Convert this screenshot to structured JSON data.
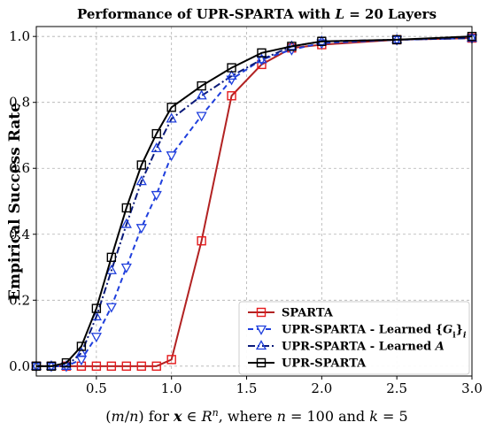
{
  "chart_data": {
    "type": "line",
    "title": "Performance of UPR-SPARTA with L = 20 Layers",
    "xlabel": "(m/n) for x ∈ R^n, where n = 100 and k = 5",
    "ylabel": "Empirical Success Rate",
    "xlim": [
      0.1,
      3.0
    ],
    "ylim": [
      -0.03,
      1.03
    ],
    "xticks": [
      0.5,
      1.0,
      1.5,
      2.0,
      2.5,
      3.0
    ],
    "xtick_labels": [
      "0.5",
      "1.0",
      "1.5",
      "2.0",
      "2.5",
      "3.0"
    ],
    "yticks": [
      0.0,
      0.2,
      0.4,
      0.6,
      0.8,
      1.0
    ],
    "ytick_labels": [
      "0.0",
      "0.2",
      "0.4",
      "0.6",
      "0.8",
      "1.0"
    ],
    "grid": true,
    "legend_position": "bottom-right",
    "series": [
      {
        "name": "SPARTA",
        "color": "#b22222",
        "marker_color": "#e41a1c",
        "dash": "solid",
        "marker": "square",
        "x": [
          0.1,
          0.2,
          0.3,
          0.4,
          0.5,
          0.6,
          0.7,
          0.8,
          0.9,
          1.0,
          1.2,
          1.4,
          1.6,
          1.8,
          2.0,
          2.5,
          3.0
        ],
        "y": [
          0.0,
          0.0,
          0.0,
          0.0,
          0.0,
          0.0,
          0.0,
          0.0,
          0.0,
          0.02,
          0.38,
          0.82,
          0.915,
          0.965,
          0.975,
          0.99,
          0.995
        ]
      },
      {
        "name": "UPR-SPARTA - Learned {G_i}_i",
        "color": "#1f3fdd",
        "marker_color": "#1f3fdd",
        "dash": "dashed",
        "marker": "triangle-down",
        "x": [
          0.1,
          0.2,
          0.3,
          0.4,
          0.5,
          0.6,
          0.7,
          0.8,
          0.9,
          1.0,
          1.2,
          1.4,
          1.6,
          1.8,
          2.0,
          2.5,
          3.0
        ],
        "y": [
          0.0,
          0.0,
          0.0,
          0.02,
          0.09,
          0.18,
          0.3,
          0.42,
          0.52,
          0.64,
          0.76,
          0.87,
          0.93,
          0.96,
          0.98,
          0.99,
          0.995
        ]
      },
      {
        "name": "UPR-SPARTA - Learned A",
        "color": "#0a1a7a",
        "marker_color": "#1f3fdd",
        "dash": "dashdot",
        "marker": "triangle-up",
        "x": [
          0.1,
          0.2,
          0.3,
          0.4,
          0.5,
          0.6,
          0.7,
          0.8,
          0.9,
          1.0,
          1.2,
          1.4,
          1.6,
          1.8,
          2.0,
          2.5,
          3.0
        ],
        "y": [
          0.0,
          0.0,
          0.0,
          0.04,
          0.15,
          0.29,
          0.43,
          0.56,
          0.66,
          0.75,
          0.82,
          0.88,
          0.93,
          0.97,
          0.985,
          0.99,
          0.995
        ]
      },
      {
        "name": "UPR-SPARTA",
        "color": "#000000",
        "marker_color": "#000000",
        "dash": "solid",
        "marker": "square",
        "x": [
          0.1,
          0.2,
          0.3,
          0.4,
          0.5,
          0.6,
          0.7,
          0.8,
          0.9,
          1.0,
          1.2,
          1.4,
          1.6,
          1.8,
          2.0,
          2.5,
          3.0
        ],
        "y": [
          0.0,
          0.0,
          0.01,
          0.06,
          0.175,
          0.33,
          0.48,
          0.61,
          0.705,
          0.785,
          0.85,
          0.905,
          0.95,
          0.97,
          0.985,
          0.99,
          1.0
        ]
      }
    ]
  }
}
